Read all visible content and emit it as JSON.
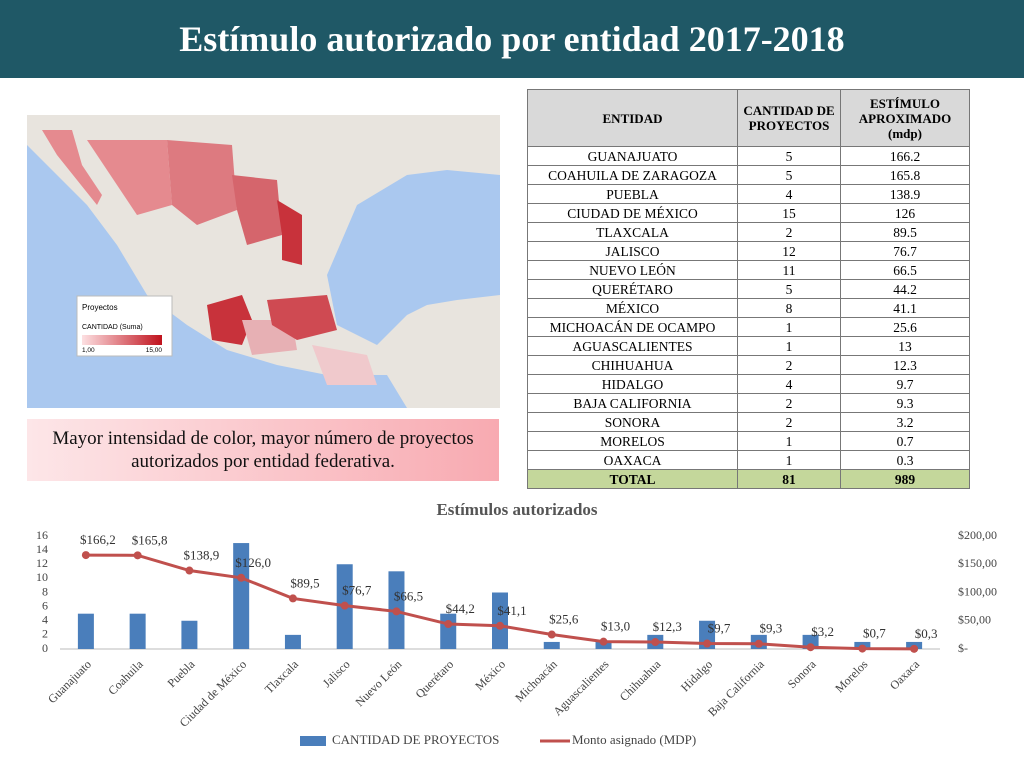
{
  "title": "Estímulo autorizado por entidad 2017-2018",
  "map": {
    "legend_title": "Proyectos",
    "legend_field": "CANTIDAD (Suma)",
    "legend_min": "1,00",
    "legend_max": "15,00"
  },
  "caption": "Mayor intensidad de color, mayor número de proyectos autorizados por entidad federativa.",
  "table": {
    "header": [
      "ENTIDAD",
      "CANTIDAD DE PROYECTOS",
      "ESTÍMULO APROXIMADO (mdp)"
    ],
    "rows": [
      [
        "GUANAJUATO",
        5,
        166.2
      ],
      [
        "COAHUILA DE ZARAGOZA",
        5,
        165.8
      ],
      [
        "PUEBLA",
        4,
        138.9
      ],
      [
        "CIUDAD DE MÉXICO",
        15,
        126
      ],
      [
        "TLAXCALA",
        2,
        89.5
      ],
      [
        "JALISCO",
        12,
        76.7
      ],
      [
        "NUEVO LEÓN",
        11,
        66.5
      ],
      [
        "QUERÉTARO",
        5,
        44.2
      ],
      [
        "MÉXICO",
        8,
        41.1
      ],
      [
        "MICHOACÁN DE OCAMPO",
        1,
        25.6
      ],
      [
        "AGUASCALIENTES",
        1,
        13
      ],
      [
        "CHIHUAHUA",
        2,
        12.3
      ],
      [
        "HIDALGO",
        4,
        9.7
      ],
      [
        "BAJA CALIFORNIA",
        2,
        9.3
      ],
      [
        "SONORA",
        2,
        3.2
      ],
      [
        "MORELOS",
        1,
        0.7
      ],
      [
        "OAXACA",
        1,
        0.3
      ]
    ],
    "total": [
      "TOTAL",
      81,
      989
    ]
  },
  "chart_data": {
    "type": "bar",
    "title": "Estímulos autorizados",
    "categories": [
      "Guanajuato",
      "Coahuila",
      "Puebla",
      "Ciudad de México",
      "Tlaxcala",
      "Jalisco",
      "Nuevo León",
      "Querétaro",
      "México",
      "Michoacán",
      "Aguascalientes",
      "Chihuahua",
      "Hidalgo",
      "Baja California",
      "Sonora",
      "Morelos",
      "Oaxaca"
    ],
    "series": [
      {
        "name": "CANTIDAD DE PROYECTOS",
        "color": "#4a7ebb",
        "values": [
          5,
          5,
          4,
          15,
          2,
          12,
          11,
          5,
          8,
          1,
          1,
          2,
          4,
          2,
          2,
          1,
          1
        ]
      },
      {
        "name": "Monto asignado (MDP)",
        "color": "#c0504d",
        "type": "line",
        "axis": "y2",
        "values": [
          166.2,
          165.8,
          138.9,
          126,
          89.5,
          76.7,
          66.5,
          44.2,
          41.1,
          25.6,
          13,
          12.3,
          9.7,
          9.3,
          3.2,
          0.7,
          0.3
        ],
        "value_labels": [
          "$166,2",
          "$165,8",
          "$138,9",
          "$126,0",
          "$89,5",
          "$76,7",
          "$66,5",
          "$44,2",
          "$41,1",
          "$25,6",
          "$13,0",
          "$12,3",
          "$9,7",
          "$9,3",
          "$3,2",
          "$0,7",
          "$0,3"
        ]
      }
    ],
    "ylim": [
      0,
      16
    ],
    "yticks": [
      0,
      2,
      4,
      6,
      8,
      10,
      12,
      14,
      16
    ],
    "y2lim": [
      0,
      200
    ],
    "y2ticks": [
      {
        "value": 0,
        "label": "$-"
      },
      {
        "value": 50,
        "label": "$50,00"
      },
      {
        "value": 100,
        "label": "$100,00"
      },
      {
        "value": 150,
        "label": "$150,00"
      },
      {
        "value": 200,
        "label": "$200,00"
      }
    ],
    "legend": "bottom"
  }
}
